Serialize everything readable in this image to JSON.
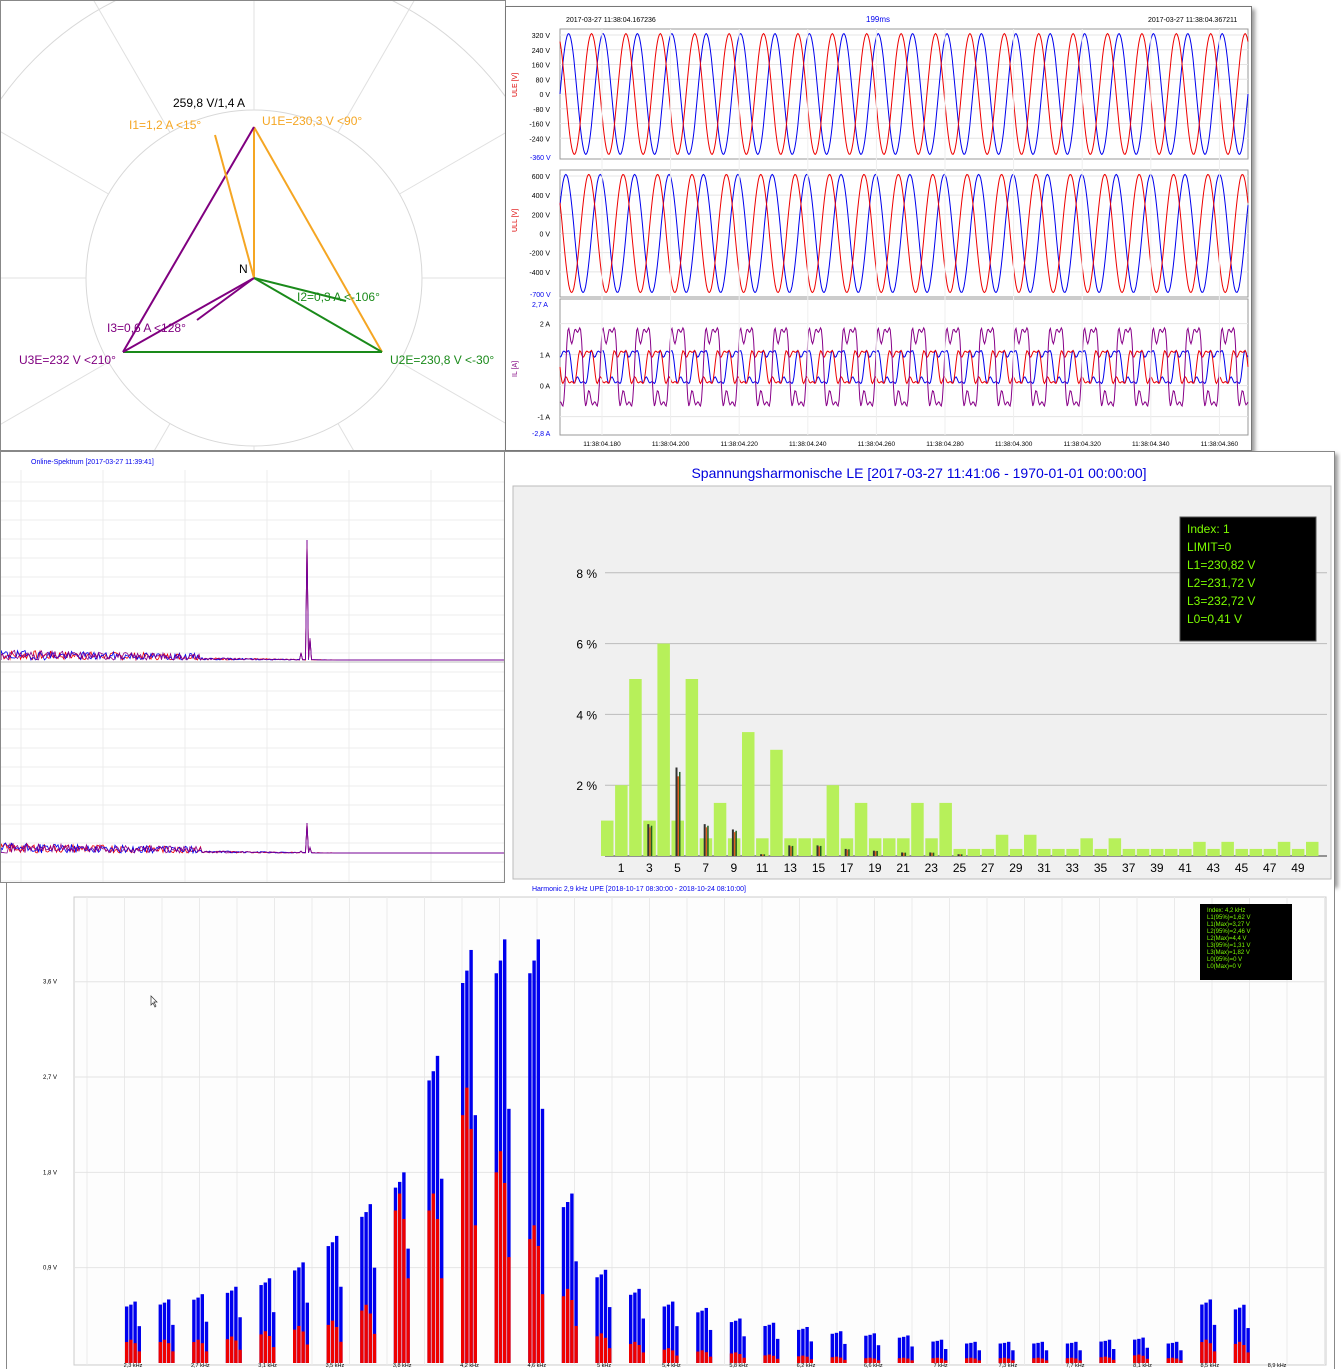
{
  "colors": {
    "L1": "#0000ee",
    "L2": "#ee0000",
    "L3": "#880088",
    "phU1": "#f5a623",
    "phU2": "#1a8a1a",
    "phU3": "#800080",
    "harmBar": "#b7f05a",
    "tooltipBg": "#000000",
    "tooltipText": "#7CFC00"
  },
  "phasor": {
    "center_label": "N",
    "scale_label": "259,8 V/1,4 A",
    "labels": {
      "u1": "U1E=230,3 V <90°",
      "u2": "U2E=230,8 V <-30°",
      "u3": "U3E=232 V <210°",
      "i1": "I1=1,2 A  <15°",
      "i2": "I2=0,3 A  <-106°",
      "i3": "I3=0,6 A  <128°"
    }
  },
  "oscillo": {
    "start": "2017-03-27 11:38:04.167236",
    "duration": "199ms",
    "end": "2017-03-27 11:38:04.367211",
    "ule": {
      "ylabel": "ULE [V]",
      "ticks": [
        "320 V",
        "240 V",
        "160 V",
        "80 V",
        "0 V",
        "-80 V",
        "-160 V",
        "-240 V"
      ],
      "min_label": "-360 V"
    },
    "ull": {
      "ylabel": "ULL [V]",
      "ticks": [
        "600 V",
        "400 V",
        "200 V",
        "0 V",
        "-200 V",
        "-400 V"
      ],
      "min_label": "-700 V"
    },
    "il": {
      "ylabel": "IL [A]",
      "max_label": "2,7 A",
      "ticks": [
        "2 A",
        "1 A",
        "0 A",
        "-1 A"
      ],
      "min_label": "-2,8 A"
    },
    "xticks": [
      "11:38:04.180",
      "11:38:04.200",
      "11:38:04.220",
      "11:38:04.240",
      "11:38:04.260",
      "11:38:04.280",
      "11:38:04.300",
      "11:38:04.320",
      "11:38:04.340",
      "11:38:04.360"
    ]
  },
  "spectrum": {
    "title": "Online-Spektrum [2017-03-27 11:39:41]"
  },
  "chart_data": [
    {
      "type": "bar",
      "title": "Spannungsharmonische LE [2017-03-27 11:41:06 - 1970-01-01 00:00:00]",
      "ylabel": "",
      "xlabel": "",
      "ylim": [
        0,
        10
      ],
      "yticks": [
        "2 %",
        "4 %",
        "6 %",
        "8 %"
      ],
      "xticks": [
        "1",
        "3",
        "5",
        "7",
        "9",
        "11",
        "13",
        "15",
        "17",
        "19",
        "21",
        "23",
        "25",
        "27",
        "29",
        "31",
        "33",
        "35",
        "37",
        "39",
        "41",
        "43",
        "45",
        "47",
        "49"
      ],
      "harmonics": [
        0,
        1,
        2,
        3,
        4,
        5,
        6,
        7,
        8,
        9,
        10,
        11,
        12,
        13,
        14,
        15,
        16,
        17,
        18,
        19,
        20,
        21,
        22,
        23,
        24,
        25,
        26,
        27,
        28,
        29,
        30,
        31,
        32,
        33,
        34,
        35,
        36,
        37,
        38,
        39,
        40,
        41,
        42,
        43,
        44,
        45,
        46,
        47,
        48,
        49,
        50
      ],
      "limit_values": [
        1,
        2,
        5,
        1,
        6,
        1,
        5,
        0.5,
        1.5,
        0.5,
        3.5,
        0.5,
        3,
        0.5,
        0.5,
        0.5,
        2,
        0.5,
        1.5,
        0.5,
        0.5,
        0.5,
        1.5,
        0.5,
        1.5,
        0.2,
        0.2,
        0.2,
        0.6,
        0.2,
        0.6,
        0.2,
        0.2,
        0.2,
        0.5,
        0.2,
        0.5,
        0.2,
        0.2,
        0.2,
        0.2,
        0.2,
        0.4,
        0.2,
        0.4,
        0.2,
        0.2,
        0.2,
        0.4,
        0.2,
        0.4
      ],
      "measured": [
        0,
        0,
        0,
        0.9,
        0,
        2.5,
        0,
        0.9,
        0,
        0.75,
        0,
        0.05,
        0,
        0.3,
        0,
        0.3,
        0,
        0.2,
        0,
        0.15,
        0,
        0.1,
        0,
        0.1,
        0,
        0.05,
        0,
        0,
        0,
        0,
        0,
        0,
        0,
        0,
        0,
        0,
        0,
        0,
        0,
        0,
        0,
        0,
        0,
        0,
        0,
        0,
        0,
        0,
        0,
        0,
        0
      ],
      "tooltip": [
        "Index: 1",
        "LIMIT=0",
        "L1=230,82 V",
        "L2=231,72 V",
        "L3=232,72 V",
        "L0=0,41 V"
      ]
    },
    {
      "type": "bar",
      "title": "Harmonic 2,9 kHz UPE [2018-10-17 08:30:00 - 2018-10-24 08:10:00]",
      "ylim": [
        0,
        4.4
      ],
      "yticks": [
        "0,9 V",
        "1,8 V",
        "2,7 V",
        "3,6 V"
      ],
      "ytick_values": [
        0.9,
        1.8,
        2.7,
        3.6
      ],
      "xticks": [
        "2,3 kHz",
        "2,7 kHz",
        "3,1 kHz",
        "3,5 kHz",
        "3,8 kHz",
        "4,2 kHz",
        "4,6 kHz",
        "5 kHz",
        "5,4 kHz",
        "5,8 kHz",
        "6,2 kHz",
        "6,6 kHz",
        "7 kHz",
        "7,3 kHz",
        "7,7 kHz",
        "8,1 kHz",
        "8,5 kHz",
        "8,9 kHz"
      ],
      "series": [
        {
          "name": "L1(95%)",
          "color": "#0000ee"
        },
        {
          "name": "L1(Max)",
          "color": "#0000ee"
        },
        {
          "name": "L2(95%)",
          "color": "#ee0000"
        }
      ],
      "groups_max": [
        0.58,
        0.6,
        0.65,
        0.72,
        0.8,
        0.95,
        1.2,
        1.5,
        1.8,
        2.9,
        3.9,
        4.0,
        4.0,
        1.6,
        0.88,
        0.7,
        0.58,
        0.52,
        0.42,
        0.38,
        0.34,
        0.3,
        0.28,
        0.26,
        0.22,
        0.2,
        0.2,
        0.2,
        0.2,
        0.22,
        0.24,
        0.2,
        0.6,
        0.55
      ],
      "groups_red": [
        0.22,
        0.22,
        0.22,
        0.25,
        0.3,
        0.35,
        0.4,
        0.55,
        1.6,
        1.6,
        2.6,
        2.0,
        1.3,
        0.7,
        0.28,
        0.2,
        0.14,
        0.12,
        0.1,
        0.08,
        0.07,
        0.06,
        0.05,
        0.05,
        0.05,
        0.05,
        0.05,
        0.05,
        0.05,
        0.06,
        0.08,
        0.05,
        0.22,
        0.2
      ],
      "tooltip": [
        "Index: 4,2 kHz",
        "L1(95%)=1,62 V",
        "L1(Max)=3,27 V",
        "L2(95%)=2,46 V",
        "L2(Max)=4,4 V",
        "L3(95%)=1,31 V",
        "L3(Max)=1,82 V",
        "L0(95%)=0 V",
        "L0(Max)=0 V"
      ]
    }
  ]
}
